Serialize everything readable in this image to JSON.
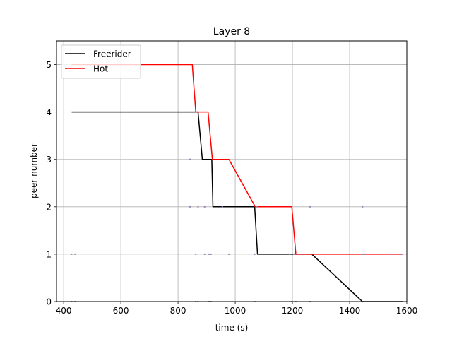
{
  "chart_data": {
    "type": "line",
    "title": "Layer 8",
    "xlabel": "time (s)",
    "ylabel": "peer number",
    "xlim": [
      375,
      1600
    ],
    "ylim": [
      0,
      5.5
    ],
    "xticks": [
      400,
      600,
      800,
      1000,
      1200,
      1400,
      1600
    ],
    "yticks": [
      0,
      1,
      2,
      3,
      4,
      5
    ],
    "grid": true,
    "legend_position": "top-left",
    "series": [
      {
        "name": "Freerider",
        "color": "#000000",
        "x": [
          428,
          870,
          885,
          918,
          922,
          1068,
          1078,
          1268,
          1445,
          1585
        ],
        "y": [
          4,
          4,
          3,
          3,
          2,
          2,
          1,
          1,
          0,
          0
        ]
      },
      {
        "name": "Hot",
        "color": "#ff0000",
        "x": [
          428,
          850,
          862,
          905,
          920,
          978,
          1070,
          1198,
          1212,
          1585
        ],
        "y": [
          5,
          5,
          4,
          4,
          3,
          3,
          2,
          2,
          1,
          1
        ]
      }
    ],
    "scatter_markers": {
      "color": "#9a7fb0",
      "points": [
        [
          428,
          1
        ],
        [
          440,
          1
        ],
        [
          428,
          0
        ],
        [
          440,
          0
        ],
        [
          842,
          3
        ],
        [
          842,
          2
        ],
        [
          862,
          1
        ],
        [
          862,
          0
        ],
        [
          870,
          2
        ],
        [
          870,
          0
        ],
        [
          893,
          2
        ],
        [
          893,
          1
        ],
        [
          908,
          1
        ],
        [
          908,
          0
        ],
        [
          915,
          1
        ],
        [
          915,
          0
        ],
        [
          955,
          2
        ],
        [
          978,
          1
        ],
        [
          1068,
          1
        ],
        [
          1068,
          0
        ],
        [
          1075,
          2
        ],
        [
          1190,
          1
        ],
        [
          1198,
          0
        ],
        [
          1205,
          1
        ],
        [
          1212,
          0
        ],
        [
          1262,
          2
        ],
        [
          1262,
          0
        ],
        [
          1445,
          2
        ],
        [
          1445,
          1
        ],
        [
          1452,
          1
        ],
        [
          1510,
          1
        ],
        [
          1540,
          1
        ],
        [
          1560,
          1
        ],
        [
          1578,
          1
        ]
      ]
    }
  }
}
